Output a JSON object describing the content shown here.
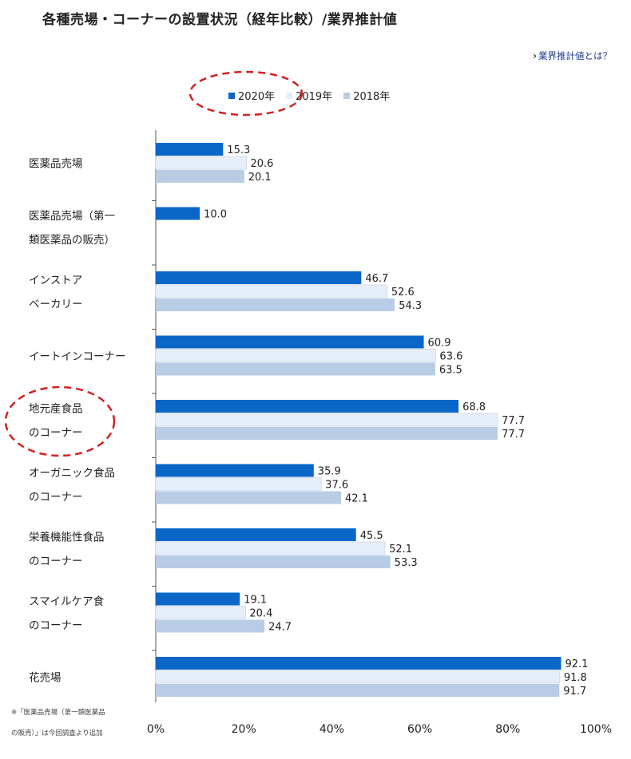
{
  "page": {
    "title": "各種売場・コーナーの設置状況（経年比較）/業界推計値",
    "link_label": "業界推計値とは？",
    "footnote_lines": [
      "※「医薬品売場（第一類医薬品",
      "の販売）」は今回調査より追加"
    ]
  },
  "colors": {
    "2020": "#0a67c8",
    "2019": "#e6eef9",
    "2018": "#b9cce6",
    "annotation": "#d42020"
  },
  "chart_data": {
    "type": "bar",
    "orientation": "horizontal",
    "title": "",
    "categories": [
      [
        "医薬品売場"
      ],
      [
        "医薬品売場（第一",
        "類医薬品の販売）"
      ],
      [
        "インストア",
        "ベーカリー"
      ],
      [
        "イートインコーナー"
      ],
      [
        "地元産食品",
        "のコーナー"
      ],
      [
        "オーガニック食品",
        "のコーナー"
      ],
      [
        "栄養機能性食品",
        "のコーナー"
      ],
      [
        "スマイルケア食",
        "のコーナー"
      ],
      [
        "花売場"
      ]
    ],
    "series": [
      {
        "name": "2020年",
        "values": [
          15.3,
          10.0,
          46.7,
          60.9,
          68.8,
          35.9,
          45.5,
          19.1,
          92.1
        ]
      },
      {
        "name": "2019年",
        "values": [
          20.6,
          null,
          52.6,
          63.6,
          77.7,
          37.6,
          52.1,
          20.4,
          91.8
        ]
      },
      {
        "name": "2018年",
        "values": [
          20.1,
          null,
          54.3,
          63.5,
          77.7,
          42.1,
          53.3,
          24.7,
          91.7
        ]
      }
    ],
    "xlim": [
      0,
      100
    ],
    "xticks": [
      "0%",
      "20%",
      "40%",
      "60%",
      "80%",
      "100%"
    ],
    "legend_position": "top-center",
    "grid": false
  }
}
